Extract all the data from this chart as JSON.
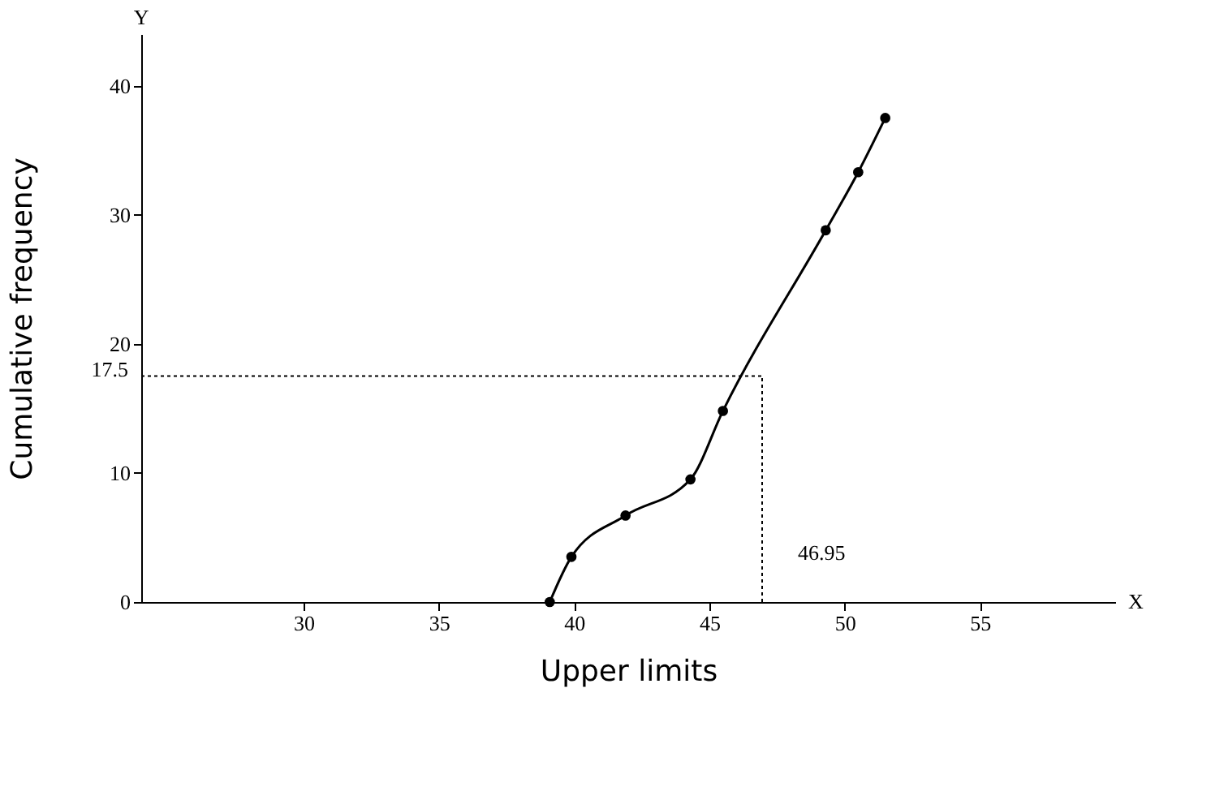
{
  "chart_data": {
    "type": "line",
    "xlabel": "Upper limits",
    "ylabel": "Cumulative frequency",
    "x": [
      39.1,
      39.9,
      41.9,
      44.3,
      45.5,
      49.3,
      50.5,
      51.5
    ],
    "series": [
      {
        "color": "#000000",
        "values": [
          0,
          3.5,
          6.7,
          9.5,
          14.8,
          28.8,
          33.3,
          37.5
        ]
      }
    ],
    "xlim": [
      24,
      60
    ],
    "ylim": [
      0,
      44
    ],
    "xticks": [
      30,
      35,
      40,
      45,
      50,
      55
    ],
    "yticks": [
      0,
      10,
      20,
      30,
      40
    ],
    "ref_lines": [
      {
        "axis": "y",
        "value": 17.5,
        "label": "17.5",
        "line_style": "dotted"
      },
      {
        "axis": "x",
        "value": 46.95,
        "label": "46.95",
        "line_style": "dotted"
      }
    ],
    "annotations": [
      {
        "text": "Y"
      },
      {
        "text": "X"
      }
    ],
    "marker": "circle",
    "line_style": "solid",
    "grid": false
  }
}
